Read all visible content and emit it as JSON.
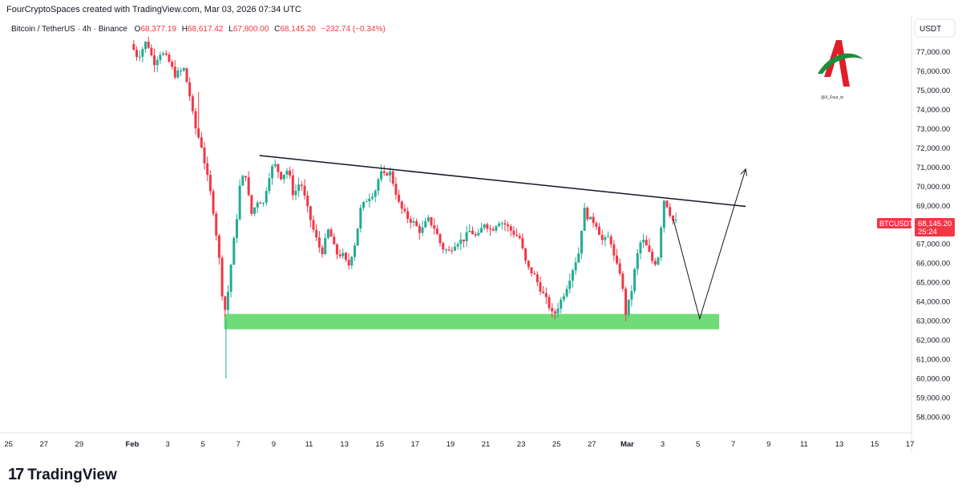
{
  "credit": "FourCryptoSpaces created with TradingView.com, Mar 03, 2026 07:34 UTC",
  "brand": "TradingView",
  "watermark": "@X_Four_tv",
  "legend": {
    "symbol": "Bitcoin / TetherUS · 4h · Binance",
    "o_label": "O",
    "o_value": "68,377.19",
    "h_label": "H",
    "h_value": "68,617.42",
    "l_label": "L",
    "l_value": "67,800.00",
    "c_label": "C",
    "c_value": "68,145.20",
    "change": "−232.74 (−0.34%)"
  },
  "currency": "USDT",
  "price_tag": {
    "symbol": "BTCUSDT",
    "price": "68,145.20",
    "countdown": "25:24"
  },
  "colors": {
    "up": "#22ab94",
    "down": "#f23645",
    "support": "#5fd86a",
    "text_down": "#f23645"
  },
  "chart_data": {
    "type": "candlestick",
    "interval": "4h",
    "ylim": [
      57000,
      78000
    ],
    "y_ticks": [
      {
        "v": 77000,
        "label": "77,000.00"
      },
      {
        "v": 76000,
        "label": "76,000.00"
      },
      {
        "v": 75000,
        "label": "75,000.00"
      },
      {
        "v": 74000,
        "label": "74,000.00"
      },
      {
        "v": 73000,
        "label": "73,000.00"
      },
      {
        "v": 72000,
        "label": "72,000.00"
      },
      {
        "v": 71000,
        "label": "71,000.00"
      },
      {
        "v": 70000,
        "label": "70,000.00"
      },
      {
        "v": 69000,
        "label": "69,000.00"
      },
      {
        "v": 68000,
        "label": "68,000.00"
      },
      {
        "v": 67000,
        "label": "67,000.00"
      },
      {
        "v": 66000,
        "label": "66,000.00"
      },
      {
        "v": 65000,
        "label": "65,000.00"
      },
      {
        "v": 64000,
        "label": "64,000.00"
      },
      {
        "v": 63000,
        "label": "63,000.00"
      },
      {
        "v": 62000,
        "label": "62,000.00"
      },
      {
        "v": 61000,
        "label": "61,000.00"
      },
      {
        "v": 60000,
        "label": "60,000.00"
      },
      {
        "v": 59000,
        "label": "59,000.00"
      },
      {
        "v": 58000,
        "label": "58,000.00"
      }
    ],
    "x_ticks": [
      {
        "d": -7,
        "label": "25"
      },
      {
        "d": -5,
        "label": "27"
      },
      {
        "d": -3,
        "label": "29"
      },
      {
        "d": 0,
        "label": "Feb",
        "bold": true
      },
      {
        "d": 2,
        "label": "3"
      },
      {
        "d": 4,
        "label": "5"
      },
      {
        "d": 6,
        "label": "7"
      },
      {
        "d": 8,
        "label": "9"
      },
      {
        "d": 10,
        "label": "11"
      },
      {
        "d": 12,
        "label": "13"
      },
      {
        "d": 14,
        "label": "15"
      },
      {
        "d": 16,
        "label": "17"
      },
      {
        "d": 18,
        "label": "19"
      },
      {
        "d": 20,
        "label": "21"
      },
      {
        "d": 22,
        "label": "23"
      },
      {
        "d": 24,
        "label": "25"
      },
      {
        "d": 26,
        "label": "27"
      },
      {
        "d": 28,
        "label": "Mar",
        "bold": true
      },
      {
        "d": 30,
        "label": "3"
      },
      {
        "d": 32,
        "label": "5"
      },
      {
        "d": 34,
        "label": "7"
      },
      {
        "d": 36,
        "label": "9"
      },
      {
        "d": 38,
        "label": "11"
      },
      {
        "d": 40,
        "label": "13"
      },
      {
        "d": 42,
        "label": "15"
      },
      {
        "d": 44,
        "label": "17"
      }
    ],
    "anchors": [
      [
        0.0,
        77400
      ],
      [
        0.4,
        76700
      ],
      [
        0.9,
        77600
      ],
      [
        1.3,
        76400
      ],
      [
        1.7,
        77000
      ],
      [
        2.1,
        76600
      ],
      [
        2.5,
        75800
      ],
      [
        3.0,
        76100
      ],
      [
        3.3,
        74900
      ],
      [
        3.6,
        73200
      ],
      [
        4.0,
        72100
      ],
      [
        4.3,
        70600
      ],
      [
        4.6,
        69200
      ],
      [
        4.85,
        67400
      ],
      [
        5.1,
        65400
      ],
      [
        5.25,
        63200
      ],
      [
        5.45,
        64100
      ],
      [
        5.7,
        66200
      ],
      [
        6.0,
        68400
      ],
      [
        6.2,
        70300
      ],
      [
        6.5,
        70600
      ],
      [
        6.8,
        68500
      ],
      [
        7.2,
        69300
      ],
      [
        7.5,
        69100
      ],
      [
        7.8,
        70500
      ],
      [
        8.1,
        71200
      ],
      [
        8.5,
        70500
      ],
      [
        8.9,
        70900
      ],
      [
        9.2,
        69500
      ],
      [
        9.6,
        70300
      ],
      [
        10.0,
        68800
      ],
      [
        10.4,
        67500
      ],
      [
        10.8,
        66500
      ],
      [
        11.2,
        67800
      ],
      [
        11.6,
        66500
      ],
      [
        12.0,
        66400
      ],
      [
        12.3,
        65800
      ],
      [
        12.7,
        67100
      ],
      [
        13.0,
        68800
      ],
      [
        13.4,
        69400
      ],
      [
        13.8,
        69700
      ],
      [
        14.1,
        70700
      ],
      [
        14.4,
        70500
      ],
      [
        14.6,
        70900
      ],
      [
        14.9,
        70000
      ],
      [
        15.2,
        69000
      ],
      [
        15.6,
        68400
      ],
      [
        16.0,
        68100
      ],
      [
        16.4,
        67600
      ],
      [
        16.8,
        68300
      ],
      [
        17.2,
        67800
      ],
      [
        17.6,
        66800
      ],
      [
        18.0,
        66600
      ],
      [
        18.4,
        67100
      ],
      [
        18.8,
        67200
      ],
      [
        19.2,
        67700
      ],
      [
        19.6,
        67300
      ],
      [
        20.0,
        68100
      ],
      [
        20.4,
        67700
      ],
      [
        20.8,
        68200
      ],
      [
        21.2,
        68000
      ],
      [
        21.6,
        67600
      ],
      [
        22.0,
        67300
      ],
      [
        22.4,
        65800
      ],
      [
        22.8,
        65400
      ],
      [
        23.2,
        64600
      ],
      [
        23.6,
        63900
      ],
      [
        23.9,
        63200
      ],
      [
        24.2,
        63800
      ],
      [
        24.6,
        64600
      ],
      [
        25.0,
        65700
      ],
      [
        25.4,
        66700
      ],
      [
        25.6,
        68900
      ],
      [
        25.9,
        68300
      ],
      [
        26.3,
        68100
      ],
      [
        26.7,
        67100
      ],
      [
        27.1,
        67400
      ],
      [
        27.4,
        66000
      ],
      [
        27.7,
        65500
      ],
      [
        28.0,
        63400
      ],
      [
        28.3,
        64400
      ],
      [
        28.6,
        66200
      ],
      [
        28.9,
        67300
      ],
      [
        29.2,
        66800
      ],
      [
        29.6,
        65900
      ],
      [
        29.9,
        66500
      ],
      [
        30.1,
        69400
      ],
      [
        30.3,
        69100
      ],
      [
        30.5,
        68600
      ],
      [
        30.7,
        68150
      ]
    ],
    "support_zone": {
      "from_day": 5.2,
      "to_day": 33.2,
      "low": 62550,
      "high": 63350
    },
    "trendline": {
      "start": [
        7.2,
        71600
      ],
      "end": [
        34.7,
        68950
      ]
    },
    "projection": [
      [
        30.6,
        68300
      ],
      [
        32.1,
        63100
      ],
      [
        34.7,
        70900
      ]
    ]
  }
}
